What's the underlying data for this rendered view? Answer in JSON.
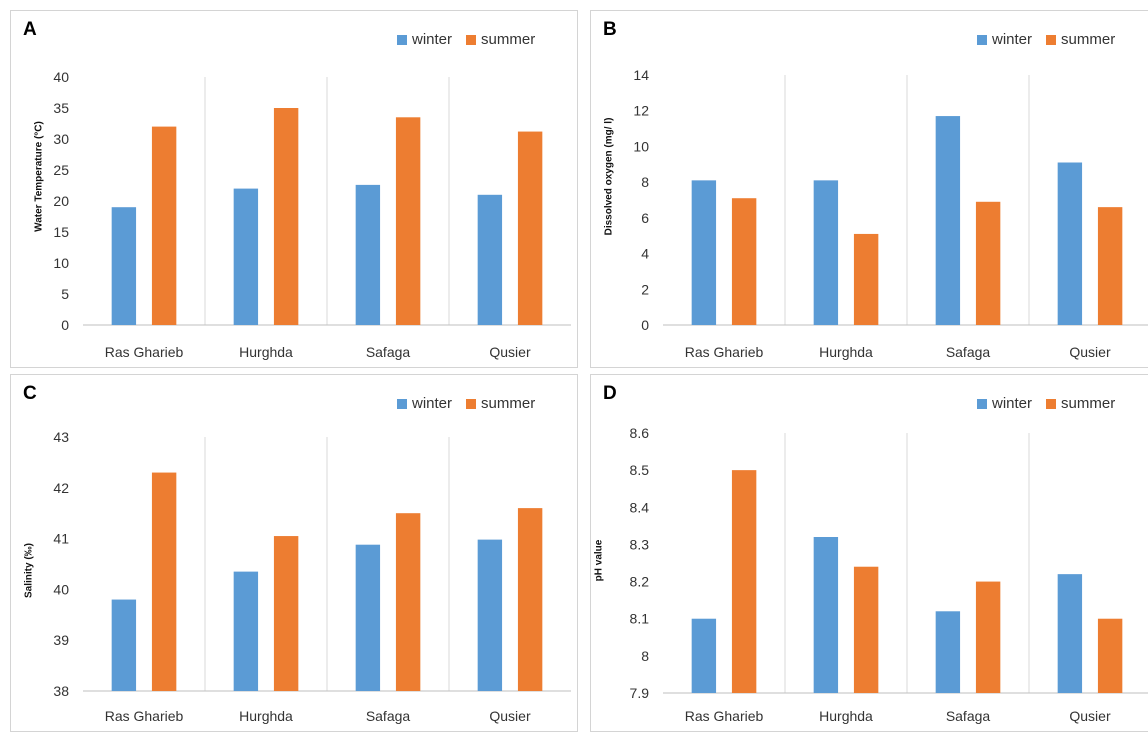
{
  "colors": {
    "winter": "#5B9BD5",
    "summer": "#ED7D31",
    "grid": "#d9d9d9",
    "axis": "#bfbfbf"
  },
  "chart_data": [
    {
      "panel": "A",
      "type": "bar",
      "categories": [
        "Ras Gharieb",
        "Hurghda",
        "Safaga",
        "Qusier"
      ],
      "series": [
        {
          "name": "winter",
          "values": [
            19,
            22,
            22.6,
            21
          ]
        },
        {
          "name": "summer",
          "values": [
            32,
            35,
            33.5,
            31.2
          ]
        }
      ],
      "ylabel": "Water Temperature (°C)",
      "ylim": [
        0,
        40
      ],
      "yticks": [
        0,
        5,
        10,
        15,
        20,
        25,
        30,
        35,
        40
      ],
      "legend": "top-right"
    },
    {
      "panel": "B",
      "type": "bar",
      "categories": [
        "Ras Gharieb",
        "Hurghda",
        "Safaga",
        "Qusier"
      ],
      "series": [
        {
          "name": "winter",
          "values": [
            8.1,
            8.1,
            11.7,
            9.1
          ]
        },
        {
          "name": "summer",
          "values": [
            7.1,
            5.1,
            6.9,
            6.6
          ]
        }
      ],
      "ylabel": "Dissolved oxygen (mg/ l)",
      "ylim": [
        0,
        14
      ],
      "yticks": [
        0,
        2,
        4,
        6,
        8,
        10,
        12,
        14
      ],
      "legend": "top-right"
    },
    {
      "panel": "C",
      "type": "bar",
      "categories": [
        "Ras Gharieb",
        "Hurghda",
        "Safaga",
        "Qusier"
      ],
      "series": [
        {
          "name": "winter",
          "values": [
            39.8,
            40.35,
            40.88,
            40.98
          ]
        },
        {
          "name": "summer",
          "values": [
            42.3,
            41.05,
            41.5,
            41.6
          ]
        }
      ],
      "ylabel": "Salinity (‰)",
      "ylim": [
        38,
        43
      ],
      "yticks": [
        38,
        39,
        40,
        41,
        42,
        43
      ],
      "legend": "top-right"
    },
    {
      "panel": "D",
      "type": "bar",
      "categories": [
        "Ras Gharieb",
        "Hurghda",
        "Safaga",
        "Qusier"
      ],
      "series": [
        {
          "name": "winter",
          "values": [
            8.1,
            8.32,
            8.12,
            8.22
          ]
        },
        {
          "name": "summer",
          "values": [
            8.5,
            8.24,
            8.2,
            8.1
          ]
        }
      ],
      "ylabel": "pH value",
      "ylim": [
        7.9,
        8.6
      ],
      "yticks": [
        "7.9",
        "8",
        "8.1",
        "8.2",
        "8.3",
        "8.4",
        "8.5",
        "8.6"
      ],
      "legend": "top-right"
    }
  ]
}
